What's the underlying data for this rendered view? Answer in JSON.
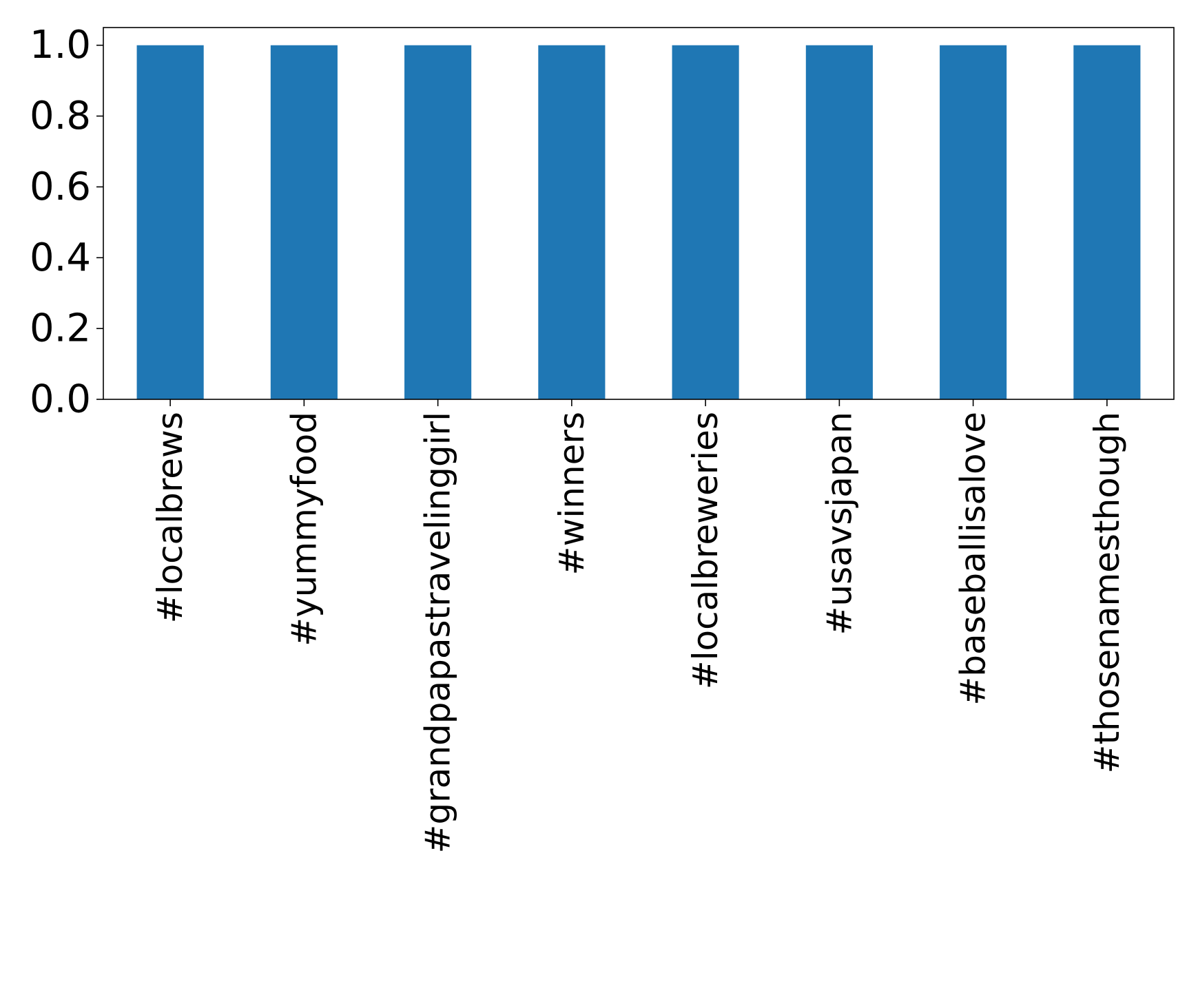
{
  "chart_data": {
    "type": "bar",
    "categories": [
      "#localbrews",
      "#yummyfood",
      "#grandpapastravelinggirl",
      "#winners",
      "#localbreweries",
      "#usavsjapan",
      "#baseballisalove",
      "#thosenamesthough"
    ],
    "values": [
      1.0,
      1.0,
      1.0,
      1.0,
      1.0,
      1.0,
      1.0,
      1.0
    ],
    "yticks": [
      "0.0",
      "0.2",
      "0.4",
      "0.6",
      "0.8",
      "1.0"
    ],
    "ylim": [
      0,
      1.05
    ],
    "title": "",
    "xlabel": "",
    "ylabel": "",
    "grid": false,
    "bar_color": "#1f77b4"
  }
}
